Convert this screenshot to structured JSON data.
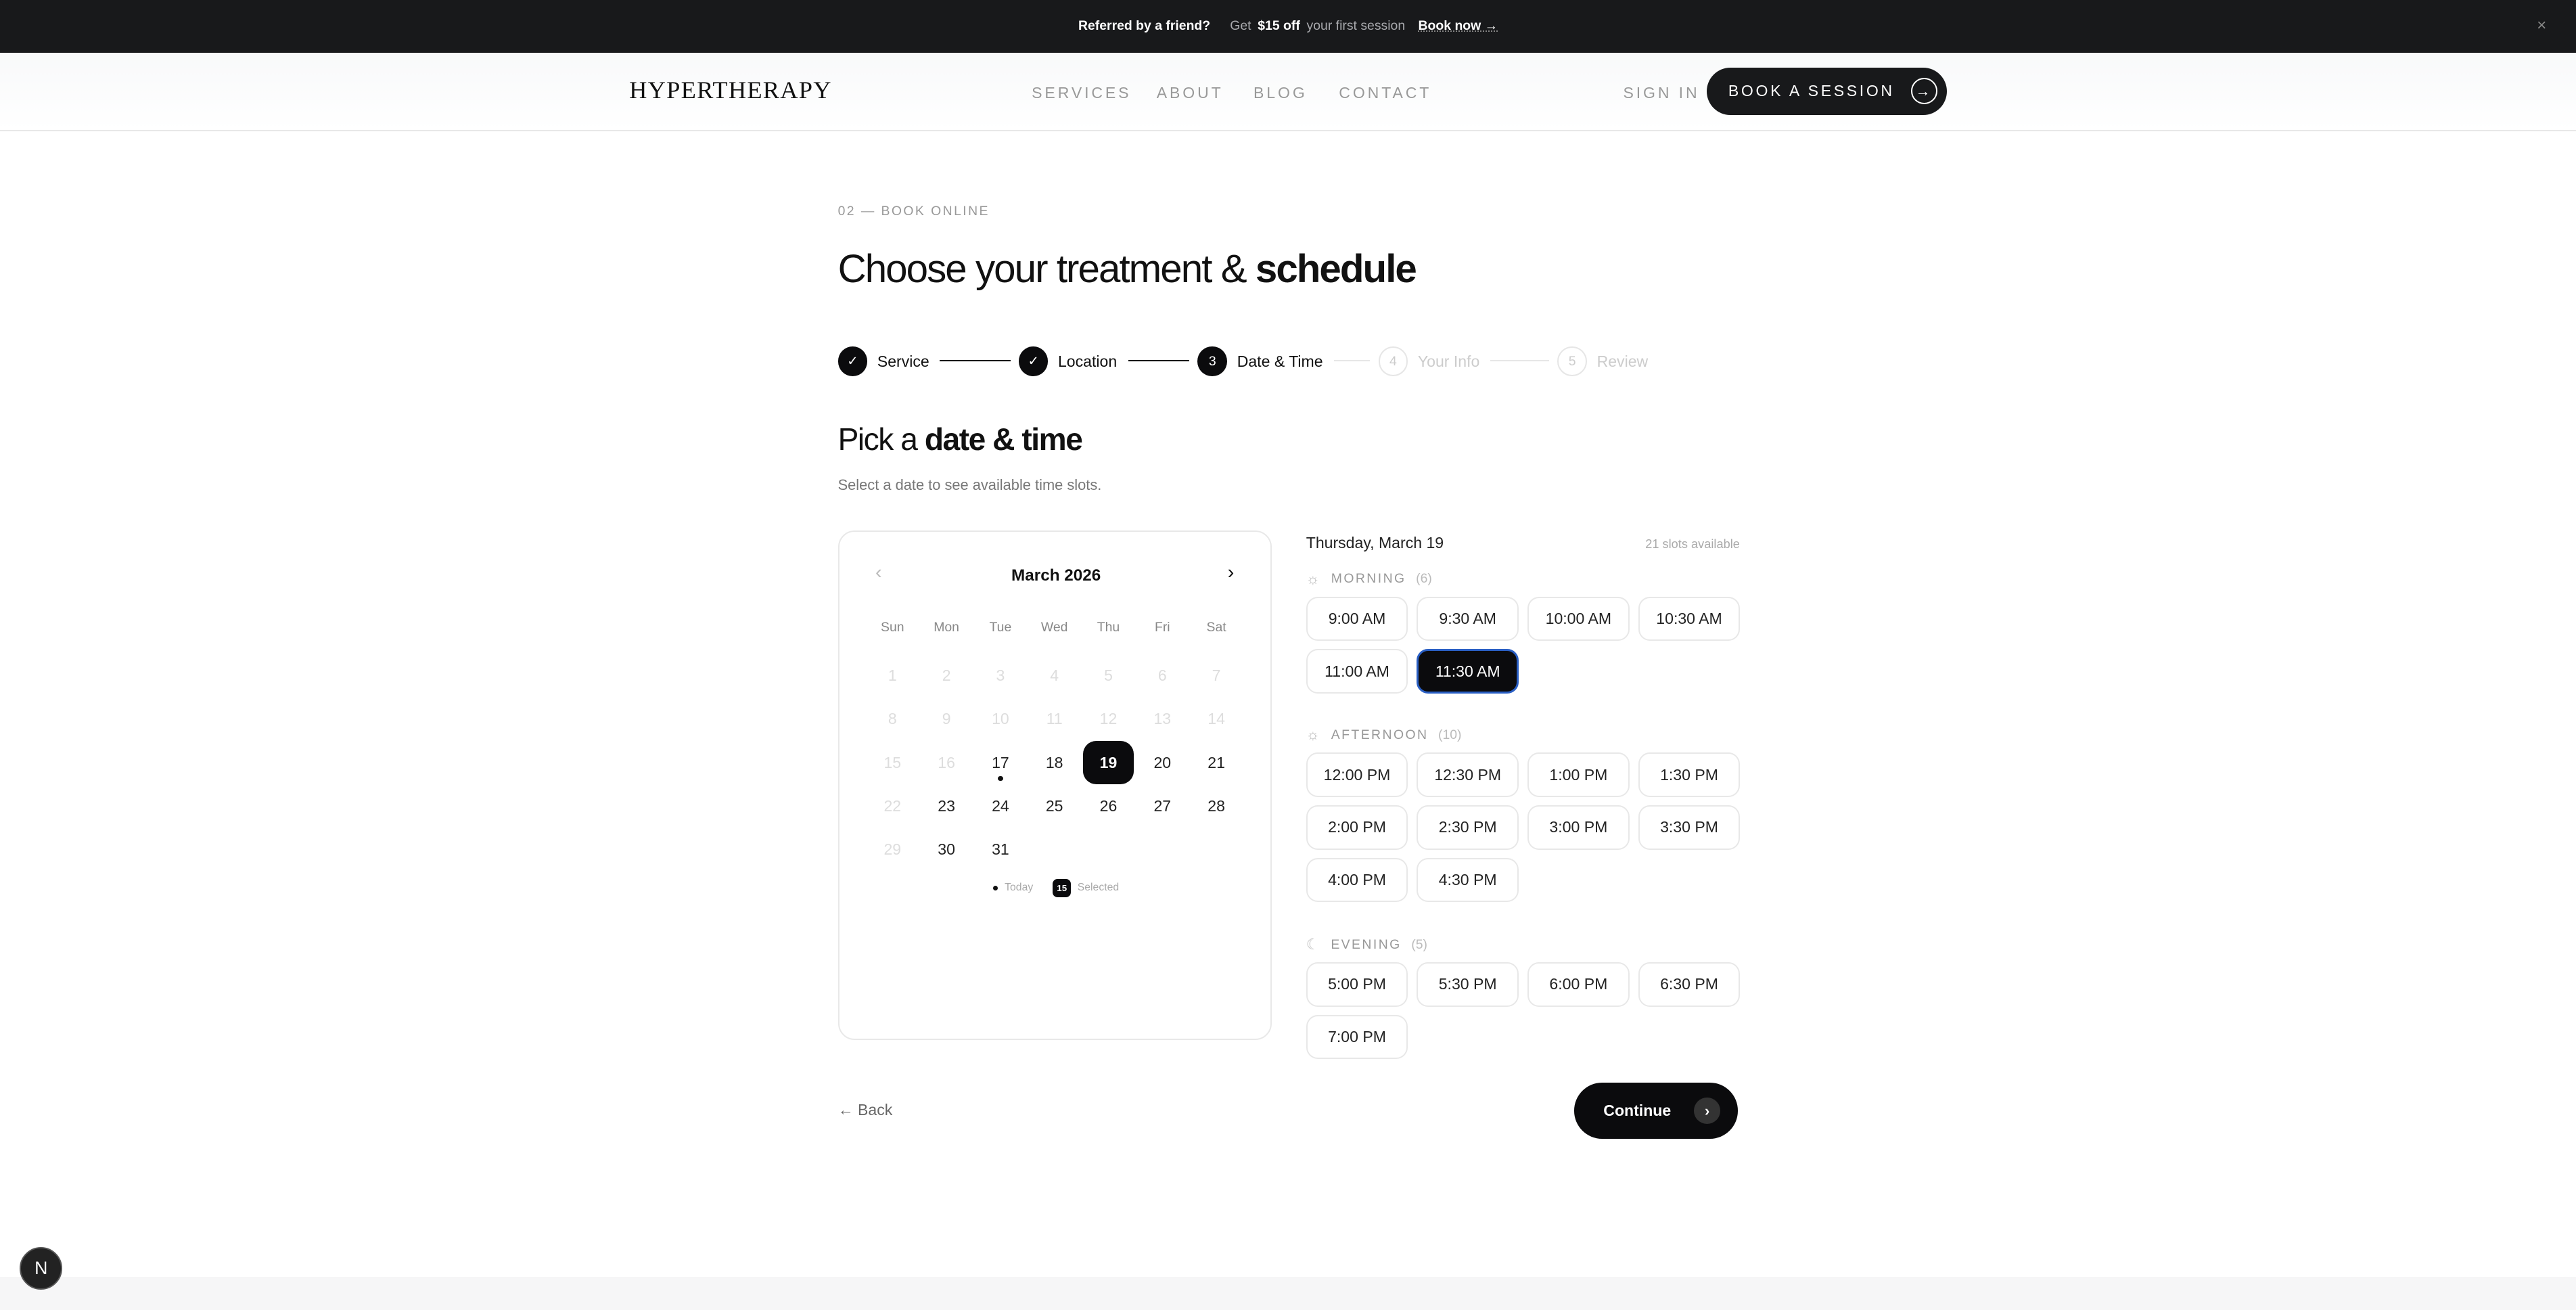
{
  "banner": {
    "referral": "Referred by a friend?",
    "get": "Get",
    "discount": "$15 off",
    "rest": "your first session",
    "cta": "Book now →",
    "close": "×"
  },
  "nav": {
    "logo": "HYPERTHERAPY",
    "links": [
      "SERVICES",
      "ABOUT",
      "BLOG",
      "CONTACT"
    ],
    "sign_in": "SIGN IN",
    "book": "BOOK A SESSION",
    "book_icon": "→"
  },
  "page": {
    "eyebrow": "02 — BOOK ONLINE",
    "title_light": "Choose your treatment & ",
    "title_bold": "schedule"
  },
  "steps": [
    {
      "label": "Service",
      "mark": "✓",
      "state": "done"
    },
    {
      "label": "Location",
      "mark": "✓",
      "state": "done"
    },
    {
      "label": "Date & Time",
      "mark": "3",
      "state": "current"
    },
    {
      "label": "Your Info",
      "mark": "4",
      "state": "upcoming"
    },
    {
      "label": "Review",
      "mark": "5",
      "state": "upcoming"
    }
  ],
  "section": {
    "title_light": "Pick a ",
    "title_bold": "date & time",
    "subtitle": "Select a date to see available time slots."
  },
  "calendar": {
    "month": "March 2026",
    "prev": "‹",
    "next": "›",
    "weekdays": [
      "Sun",
      "Mon",
      "Tue",
      "Wed",
      "Thu",
      "Fri",
      "Sat"
    ],
    "disabled_through": 16,
    "extra_disabled": [
      22,
      29
    ],
    "today": 17,
    "selected": 19,
    "days_in_month": 31,
    "legend": {
      "today": "Today",
      "selected_sample": "15",
      "selected": "Selected"
    }
  },
  "slots": {
    "date": "Thursday, March 19",
    "available": "21 slots available",
    "selected": "11:30 AM",
    "groups": [
      {
        "name": "MORNING",
        "count": "(6)",
        "icon": "sun-icon",
        "times": [
          "9:00 AM",
          "9:30 AM",
          "10:00 AM",
          "10:30 AM",
          "11:00 AM",
          "11:30 AM"
        ]
      },
      {
        "name": "AFTERNOON",
        "count": "(10)",
        "icon": "sun-icon",
        "times": [
          "12:00 PM",
          "12:30 PM",
          "1:00 PM",
          "1:30 PM",
          "2:00 PM",
          "2:30 PM",
          "3:00 PM",
          "3:30 PM",
          "4:00 PM",
          "4:30 PM"
        ]
      },
      {
        "name": "EVENING",
        "count": "(5)",
        "icon": "moon-icon",
        "times": [
          "5:00 PM",
          "5:30 PM",
          "6:00 PM",
          "6:30 PM",
          "7:00 PM"
        ]
      }
    ]
  },
  "actions": {
    "back": "← Back",
    "continue": "Continue",
    "continue_icon": "›"
  },
  "badge": "N"
}
